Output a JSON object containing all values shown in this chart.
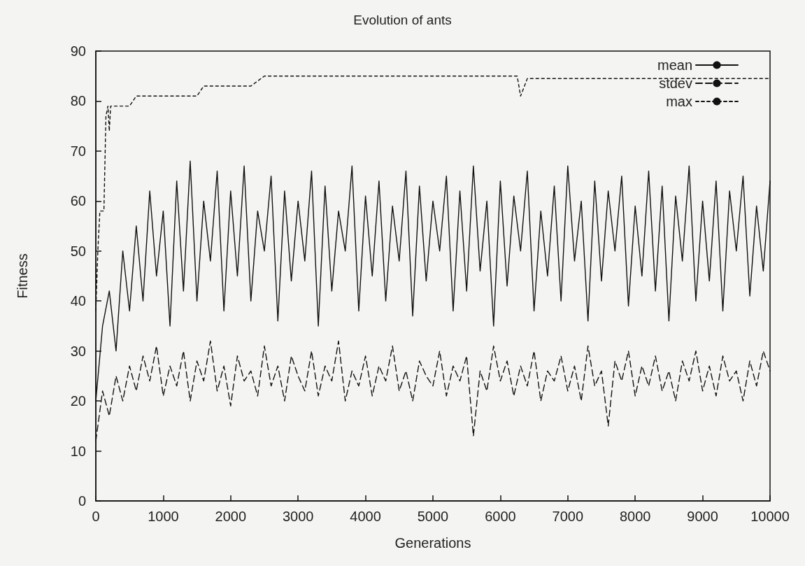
{
  "chart_data": {
    "type": "line",
    "title": "Evolution of ants",
    "xlabel": "Generations",
    "ylabel": "Fitness",
    "xlim": [
      0,
      10000
    ],
    "xticks": [
      0,
      1000,
      2000,
      3000,
      4000,
      5000,
      6000,
      7000,
      8000,
      9000,
      10000
    ],
    "ylim": [
      0,
      90
    ],
    "yticks": [
      0,
      10,
      20,
      30,
      40,
      50,
      60,
      70,
      80,
      90
    ],
    "grid": false,
    "legend": "top right",
    "marker": "none",
    "x": [
      0,
      100,
      200,
      300,
      400,
      500,
      600,
      700,
      800,
      900,
      1000,
      1100,
      1200,
      1300,
      1400,
      1500,
      1600,
      1700,
      1800,
      1900,
      2000,
      2100,
      2200,
      2300,
      2400,
      2500,
      2600,
      2700,
      2800,
      2900,
      3000,
      3100,
      3200,
      3300,
      3400,
      3500,
      3600,
      3700,
      3800,
      3900,
      4000,
      4100,
      4200,
      4300,
      4400,
      4500,
      4600,
      4700,
      4800,
      4900,
      5000,
      5100,
      5200,
      5300,
      5400,
      5500,
      5600,
      5700,
      5800,
      5900,
      6000,
      6100,
      6200,
      6300,
      6400,
      6500,
      6600,
      6700,
      6800,
      6900,
      7000,
      7100,
      7200,
      7300,
      7400,
      7500,
      7600,
      7700,
      7800,
      7900,
      8000,
      8100,
      8200,
      8300,
      8400,
      8500,
      8600,
      8700,
      8800,
      8900,
      9000,
      9100,
      9200,
      9300,
      9400,
      9500,
      9600,
      9700,
      9800,
      9900,
      10000
    ],
    "series": [
      {
        "name": "mean",
        "color": "#111111",
        "line_style": "solid",
        "values": [
          20,
          35,
          42,
          30,
          50,
          38,
          55,
          40,
          62,
          45,
          58,
          35,
          64,
          42,
          68,
          40,
          60,
          48,
          66,
          38,
          62,
          45,
          67,
          40,
          58,
          50,
          65,
          36,
          62,
          44,
          60,
          48,
          66,
          35,
          63,
          42,
          58,
          50,
          67,
          38,
          61,
          45,
          64,
          40,
          59,
          48,
          66,
          37,
          63,
          44,
          60,
          50,
          65,
          38,
          62,
          42,
          67,
          46,
          60,
          35,
          64,
          43,
          61,
          50,
          66,
          38,
          58,
          45,
          63,
          40,
          67,
          48,
          60,
          36,
          64,
          44,
          62,
          50,
          65,
          39,
          59,
          45,
          66,
          42,
          63,
          36,
          61,
          48,
          67,
          40,
          60,
          44,
          64,
          38,
          62,
          50,
          65,
          41,
          59,
          46,
          64
        ]
      },
      {
        "name": "stdev",
        "color": "#111111",
        "line_style": "dashed",
        "values": [
          12,
          22,
          17,
          25,
          20,
          27,
          22,
          29,
          24,
          31,
          21,
          27,
          23,
          30,
          20,
          28,
          24,
          32,
          22,
          27,
          19,
          29,
          24,
          26,
          21,
          31,
          23,
          27,
          20,
          29,
          25,
          22,
          30,
          21,
          27,
          24,
          32,
          20,
          26,
          23,
          29,
          21,
          27,
          24,
          31,
          22,
          26,
          20,
          28,
          25,
          23,
          30,
          21,
          27,
          24,
          29,
          13,
          26,
          22,
          31,
          24,
          28,
          21,
          27,
          23,
          30,
          20,
          26,
          24,
          29,
          22,
          27,
          20,
          31,
          23,
          26,
          15,
          28,
          24,
          30,
          21,
          27,
          23,
          29,
          22,
          26,
          20,
          28,
          24,
          30,
          22,
          27,
          21,
          29,
          24,
          26,
          20,
          28,
          23,
          30,
          26
        ]
      },
      {
        "name": "max",
        "color": "#111111",
        "line_style": "dotted",
        "x": [
          0,
          30,
          60,
          120,
          150,
          180,
          200,
          220,
          500,
          600,
          1500,
          1600,
          2300,
          2400,
          2500,
          6250,
          6300,
          6400,
          10000
        ],
        "values": [
          38,
          50,
          58,
          58,
          77,
          79,
          74,
          79,
          79,
          81,
          81,
          83,
          83,
          84,
          85,
          85,
          81,
          84.5,
          84.5
        ]
      }
    ]
  }
}
